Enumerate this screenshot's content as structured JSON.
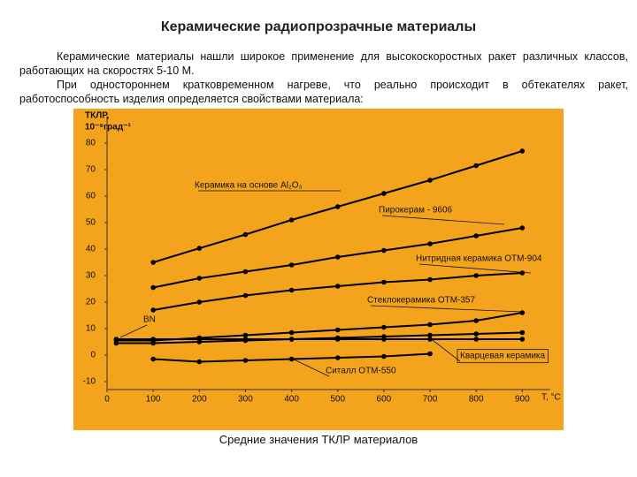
{
  "header": {
    "title": "Керамические радиопрозрачные материалы"
  },
  "paragraphs": [
    "Керамические материалы нашли широкое применение для высокоскоростных ракет различных классов, работающих на скоростях 5-10 М.",
    "При одностороннем кратковременном нагреве, что реально происходит в обтекателях ракет, работоспособность изделия определяется свойствами материала:"
  ],
  "chart_data": {
    "type": "line",
    "y_label": [
      "ТКЛР,",
      "10⁻⁶град⁻¹"
    ],
    "x_label": "T, °C",
    "caption": "Средние значения ТКЛР материалов",
    "x": [
      20,
      100,
      200,
      300,
      400,
      500,
      600,
      700,
      800,
      900
    ],
    "series": [
      {
        "name": "Керамика на основе Al₂O₃",
        "color": "#000000",
        "values": [
          null,
          35,
          40.3,
          45.5,
          51,
          56,
          61,
          66,
          71.5,
          77
        ]
      },
      {
        "name": "Пирокерам - 9606",
        "color": "#000000",
        "values": [
          null,
          25.5,
          29,
          31.5,
          34,
          37,
          39.5,
          42,
          45,
          48
        ]
      },
      {
        "name": "Нитридная керамика ОТМ-904",
        "color": "#000000",
        "values": [
          null,
          17,
          20,
          22.5,
          24.5,
          26,
          27.5,
          28.5,
          30,
          31
        ]
      },
      {
        "name": "Стеклокерамика ОТМ-357",
        "color": "#000000",
        "values": [
          5.5,
          5.5,
          6.5,
          7.5,
          8.5,
          9.5,
          10.5,
          11.5,
          13,
          16
        ]
      },
      {
        "name": "BN",
        "color": "#000000",
        "values": [
          6,
          6,
          6,
          6,
          6,
          6,
          6,
          6,
          6,
          6
        ]
      },
      {
        "name": "Кварцевая керамика",
        "color": "#000000",
        "values": [
          4.5,
          4.5,
          5,
          5.5,
          6,
          6.5,
          7,
          7.5,
          8,
          8.5
        ]
      },
      {
        "name": "Ситалл ОТМ-550",
        "color": "#000000",
        "values": [
          null,
          -1.5,
          -2.5,
          -2,
          -1.5,
          -1,
          -0.5,
          0.5,
          null,
          null
        ]
      }
    ],
    "xlim": [
      0,
      960
    ],
    "ylim": [
      -13,
      90
    ],
    "xticks": [
      0,
      100,
      200,
      300,
      400,
      500,
      600,
      700,
      800,
      900
    ],
    "yticks": [
      -10,
      0,
      10,
      20,
      30,
      40,
      50,
      60,
      70,
      80
    ]
  }
}
